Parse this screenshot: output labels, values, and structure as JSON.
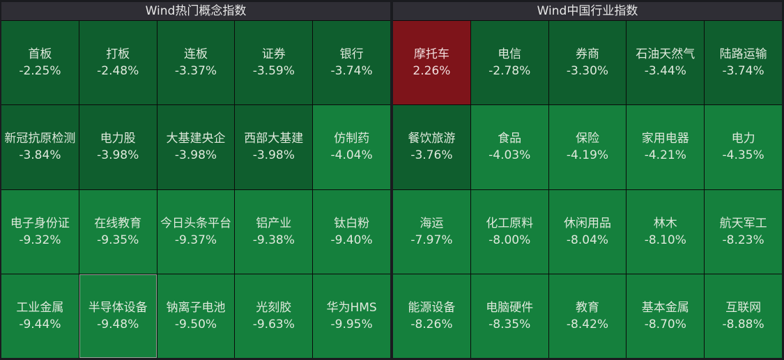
{
  "colors": {
    "down_dark": "#0f5e2e",
    "down_bright": "#15803d",
    "up": "#7e141a",
    "header": "#2f2e35"
  },
  "panels": [
    {
      "title": "Wind热门概念指数",
      "cells": [
        {
          "name": "首板",
          "change": "-2.25%",
          "tone": "dark"
        },
        {
          "name": "打板",
          "change": "-2.48%",
          "tone": "dark"
        },
        {
          "name": "连板",
          "change": "-3.37%",
          "tone": "dark"
        },
        {
          "name": "证券",
          "change": "-3.59%",
          "tone": "dark"
        },
        {
          "name": "银行",
          "change": "-3.74%",
          "tone": "dark"
        },
        {
          "name": "新冠抗原检测",
          "change": "-3.84%",
          "tone": "dark"
        },
        {
          "name": "电力股",
          "change": "-3.98%",
          "tone": "dark"
        },
        {
          "name": "大基建央企",
          "change": "-3.98%",
          "tone": "dark"
        },
        {
          "name": "西部大基建",
          "change": "-3.98%",
          "tone": "dark"
        },
        {
          "name": "仿制药",
          "change": "-4.04%",
          "tone": "bright"
        },
        {
          "name": "电子身份证",
          "change": "-9.32%",
          "tone": "bright"
        },
        {
          "name": "在线教育",
          "change": "-9.35%",
          "tone": "bright"
        },
        {
          "name": "今日头条平台",
          "change": "-9.37%",
          "tone": "bright"
        },
        {
          "name": "铝产业",
          "change": "-9.38%",
          "tone": "bright"
        },
        {
          "name": "钛白粉",
          "change": "-9.40%",
          "tone": "bright"
        },
        {
          "name": "工业金属",
          "change": "-9.44%",
          "tone": "bright"
        },
        {
          "name": "半导体设备",
          "change": "-9.48%",
          "tone": "bright",
          "selected": true
        },
        {
          "name": "钠离子电池",
          "change": "-9.50%",
          "tone": "bright"
        },
        {
          "name": "光刻胶",
          "change": "-9.63%",
          "tone": "bright"
        },
        {
          "name": "华为HMS",
          "change": "-9.95%",
          "tone": "bright"
        }
      ]
    },
    {
      "title": "Wind中国行业指数",
      "cells": [
        {
          "name": "摩托车",
          "change": "2.26%",
          "tone": "up"
        },
        {
          "name": "电信",
          "change": "-2.78%",
          "tone": "dark"
        },
        {
          "name": "券商",
          "change": "-3.30%",
          "tone": "dark"
        },
        {
          "name": "石油天然气",
          "change": "-3.44%",
          "tone": "dark"
        },
        {
          "name": "陆路运输",
          "change": "-3.74%",
          "tone": "dark"
        },
        {
          "name": "餐饮旅游",
          "change": "-3.76%",
          "tone": "dark"
        },
        {
          "name": "食品",
          "change": "-4.03%",
          "tone": "bright"
        },
        {
          "name": "保险",
          "change": "-4.19%",
          "tone": "bright"
        },
        {
          "name": "家用电器",
          "change": "-4.21%",
          "tone": "bright"
        },
        {
          "name": "电力",
          "change": "-4.35%",
          "tone": "bright"
        },
        {
          "name": "海运",
          "change": "-7.97%",
          "tone": "bright"
        },
        {
          "name": "化工原料",
          "change": "-8.00%",
          "tone": "bright"
        },
        {
          "name": "休闲用品",
          "change": "-8.04%",
          "tone": "bright"
        },
        {
          "name": "林木",
          "change": "-8.10%",
          "tone": "bright"
        },
        {
          "name": "航天军工",
          "change": "-8.23%",
          "tone": "bright"
        },
        {
          "name": "能源设备",
          "change": "-8.26%",
          "tone": "bright"
        },
        {
          "name": "电脑硬件",
          "change": "-8.35%",
          "tone": "bright"
        },
        {
          "name": "教育",
          "change": "-8.42%",
          "tone": "bright"
        },
        {
          "name": "基本金属",
          "change": "-8.70%",
          "tone": "bright"
        },
        {
          "name": "互联网",
          "change": "-8.88%",
          "tone": "bright"
        }
      ]
    }
  ],
  "chart_data": [
    {
      "type": "heatmap",
      "title": "Wind热门概念指数",
      "layout": {
        "rows": 4,
        "cols": 5
      },
      "categories": [
        "首板",
        "打板",
        "连板",
        "证券",
        "银行",
        "新冠抗原检测",
        "电力股",
        "大基建央企",
        "西部大基建",
        "仿制药",
        "电子身份证",
        "在线教育",
        "今日头条平台",
        "铝产业",
        "钛白粉",
        "工业金属",
        "半导体设备",
        "钠离子电池",
        "光刻胶",
        "华为HMS"
      ],
      "values": [
        -2.25,
        -2.48,
        -3.37,
        -3.59,
        -3.74,
        -3.84,
        -3.98,
        -3.98,
        -3.98,
        -4.04,
        -9.32,
        -9.35,
        -9.37,
        -9.38,
        -9.4,
        -9.44,
        -9.48,
        -9.5,
        -9.63,
        -9.95
      ],
      "unit": "%"
    },
    {
      "type": "heatmap",
      "title": "Wind中国行业指数",
      "layout": {
        "rows": 4,
        "cols": 5
      },
      "categories": [
        "摩托车",
        "电信",
        "券商",
        "石油天然气",
        "陆路运输",
        "餐饮旅游",
        "食品",
        "保险",
        "家用电器",
        "电力",
        "海运",
        "化工原料",
        "休闲用品",
        "林木",
        "航天军工",
        "能源设备",
        "电脑硬件",
        "教育",
        "基本金属",
        "互联网"
      ],
      "values": [
        2.26,
        -2.78,
        -3.3,
        -3.44,
        -3.74,
        -3.76,
        -4.03,
        -4.19,
        -4.21,
        -4.35,
        -7.97,
        -8.0,
        -8.04,
        -8.1,
        -8.23,
        -8.26,
        -8.35,
        -8.42,
        -8.7,
        -8.88
      ],
      "unit": "%"
    }
  ]
}
